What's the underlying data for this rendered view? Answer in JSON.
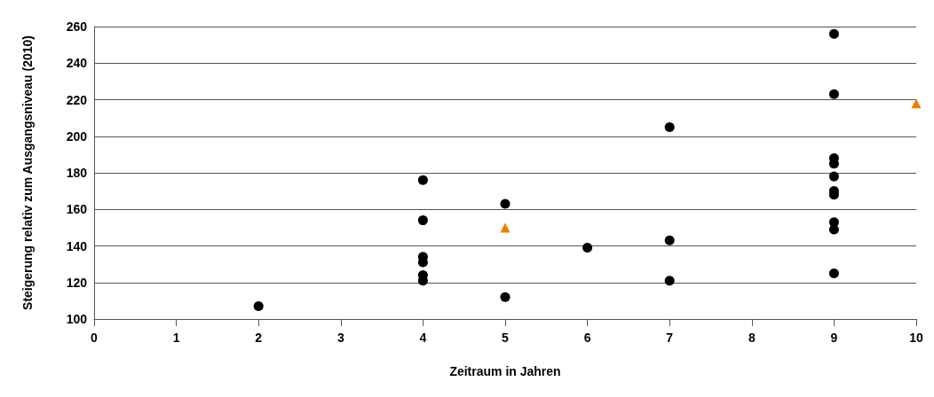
{
  "chart_data": {
    "type": "scatter",
    "xlabel": "Zeitraum in Jahren",
    "ylabel": "Steigerung relativ zum Ausgangsniveau (2010)",
    "xlim": [
      0,
      10
    ],
    "xticks": [
      0,
      1,
      2,
      3,
      4,
      5,
      6,
      7,
      8,
      9,
      10
    ],
    "ylim": [
      100,
      260
    ],
    "yticks": [
      100,
      120,
      140,
      160,
      180,
      200,
      220,
      240,
      260
    ],
    "grid": "y",
    "series": [
      {
        "color": "#000000",
        "marker": "circle",
        "x": [
          2,
          4,
          4,
          4,
          4,
          4,
          4,
          5,
          5,
          6,
          7,
          7,
          7,
          9,
          9,
          9,
          9,
          9,
          9,
          9,
          9,
          9,
          9
        ],
        "values": [
          107,
          176,
          154,
          134,
          131,
          124,
          121,
          163,
          112,
          139,
          205,
          143,
          121,
          256,
          223,
          188,
          185,
          178,
          170,
          168,
          153,
          149,
          125
        ]
      },
      {
        "color": "#f07d00",
        "marker": "triangle",
        "x": [
          5,
          10
        ],
        "values": [
          150,
          218
        ]
      }
    ]
  }
}
